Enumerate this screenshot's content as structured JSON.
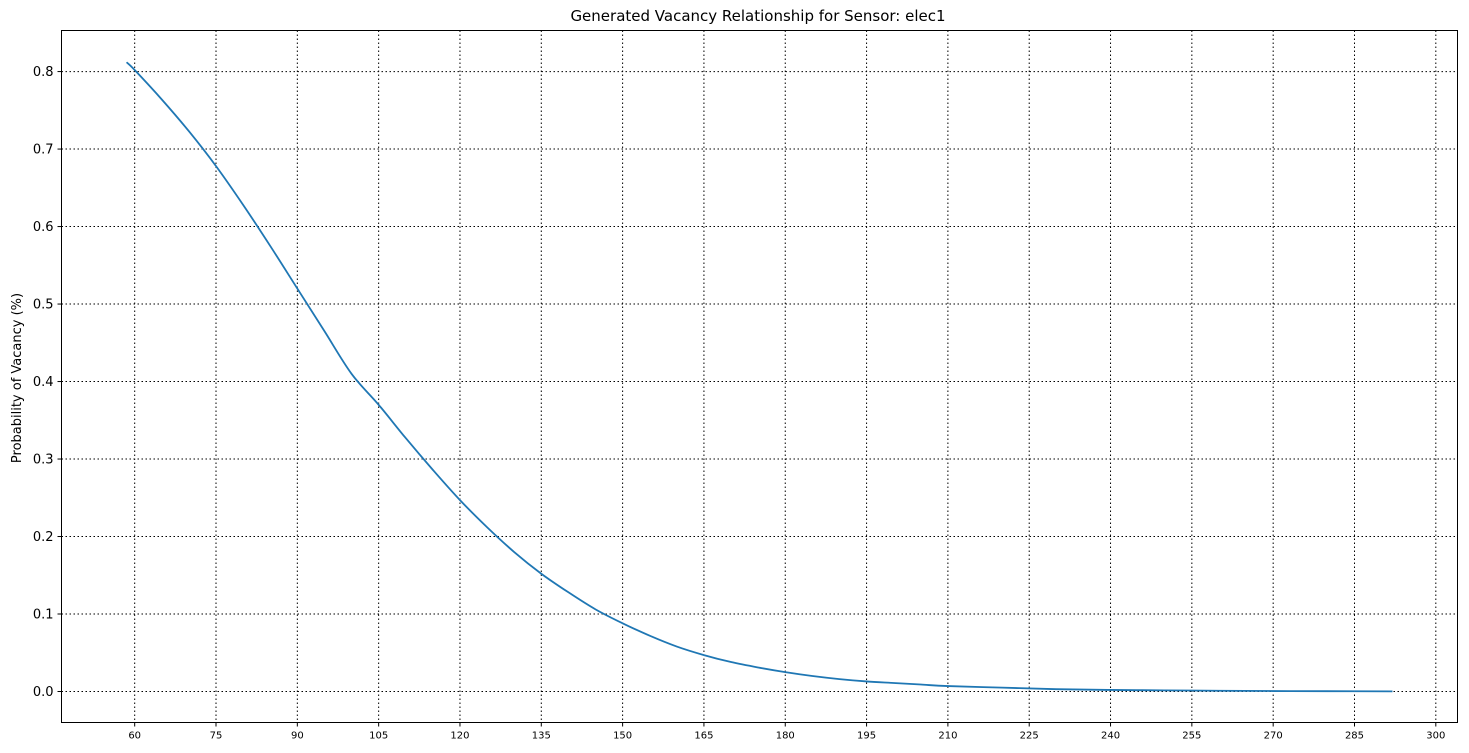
{
  "chart_data": {
    "type": "line",
    "title": "Generated Vacancy Relationship for Sensor: elec1",
    "xlabel": "",
    "ylabel": "Probability of Vacancy (%)",
    "xlim": [
      46.5,
      304
    ],
    "ylim": [
      -0.04,
      0.853
    ],
    "x_ticks": [
      "60",
      "75",
      "90",
      "105",
      "120",
      "135",
      "150",
      "165",
      "180",
      "195",
      "210",
      "225",
      "240",
      "255",
      "270",
      "285",
      "300"
    ],
    "y_ticks": [
      "0.0",
      "0.1",
      "0.2",
      "0.3",
      "0.4",
      "0.5",
      "0.6",
      "0.7",
      "0.8"
    ],
    "grid": true,
    "series": [
      {
        "color": "#1f77b4",
        "x": [
          58.5,
          60,
          65,
          70,
          75,
          80,
          85,
          90,
          95,
          100,
          105,
          110,
          115,
          120,
          125,
          130,
          135,
          140,
          145,
          150,
          155,
          160,
          165,
          170,
          175,
          180,
          185,
          190,
          195,
          200,
          205,
          210,
          220,
          230,
          240,
          250,
          260,
          270,
          280,
          292
        ],
        "y": [
          0.812,
          0.802,
          0.764,
          0.723,
          0.678,
          0.628,
          0.575,
          0.52,
          0.465,
          0.41,
          0.37,
          0.327,
          0.286,
          0.247,
          0.212,
          0.18,
          0.152,
          0.128,
          0.106,
          0.088,
          0.072,
          0.058,
          0.047,
          0.038,
          0.031,
          0.025,
          0.02,
          0.016,
          0.013,
          0.011,
          0.009,
          0.007,
          0.005,
          0.003,
          0.002,
          0.0015,
          0.001,
          0.0006,
          0.0004,
          0.0002
        ]
      }
    ]
  }
}
